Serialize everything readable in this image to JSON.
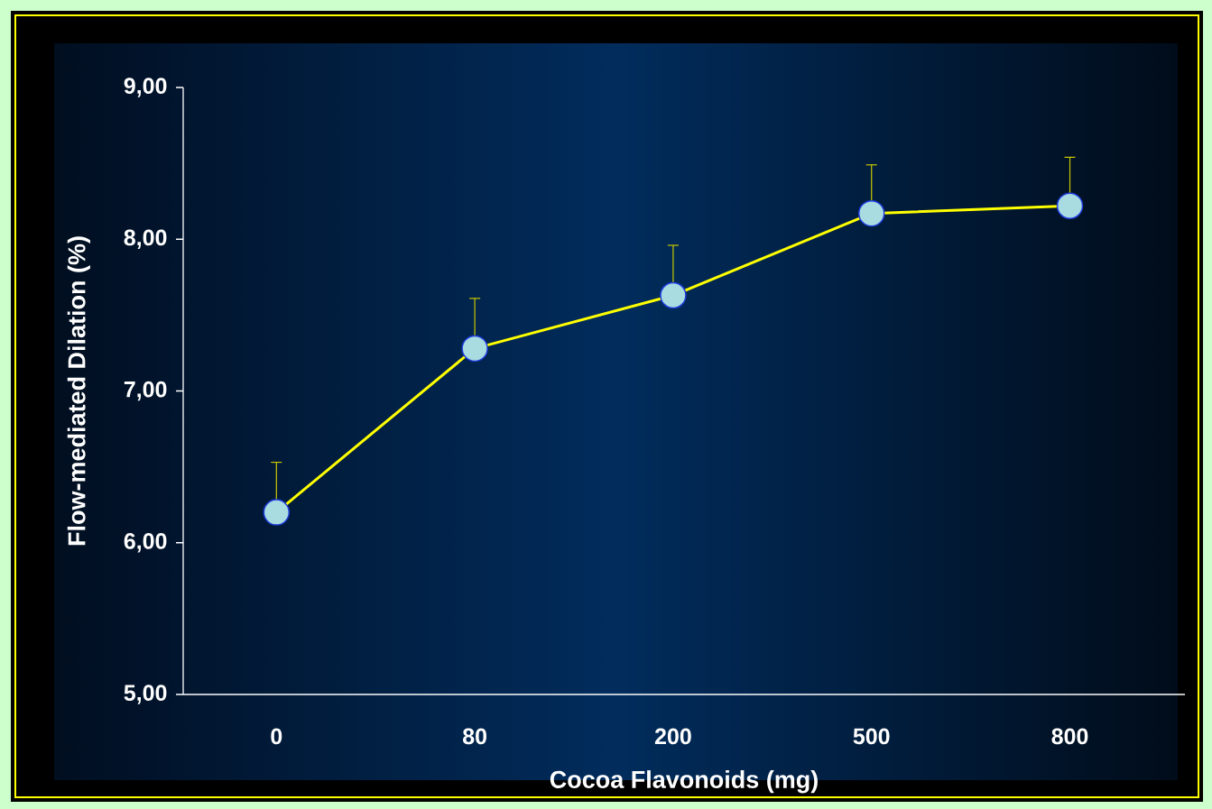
{
  "chart_data": {
    "type": "line",
    "xlabel": "Cocoa Flavonoids (mg)",
    "ylabel": "Flow-mediated  Dilation  (%)",
    "categories": [
      "0",
      "80",
      "200",
      "500",
      "800"
    ],
    "values": [
      6.2,
      7.28,
      7.63,
      8.17,
      8.22
    ],
    "errors": [
      [
        6.2,
        6.53
      ],
      [
        7.28,
        7.61
      ],
      [
        7.63,
        7.96
      ],
      [
        8.17,
        8.49
      ],
      [
        8.22,
        8.54
      ]
    ],
    "color": "#ffff00",
    "marker": "circle",
    "line_style": "solid",
    "ylim": [
      5,
      9
    ],
    "yticks": [
      {
        "value": 5,
        "label": "5,00"
      },
      {
        "value": 6,
        "label": "6,00"
      },
      {
        "value": 7,
        "label": "7,00"
      },
      {
        "value": 8,
        "label": "8,00"
      },
      {
        "value": 9,
        "label": "9,00"
      }
    ]
  }
}
